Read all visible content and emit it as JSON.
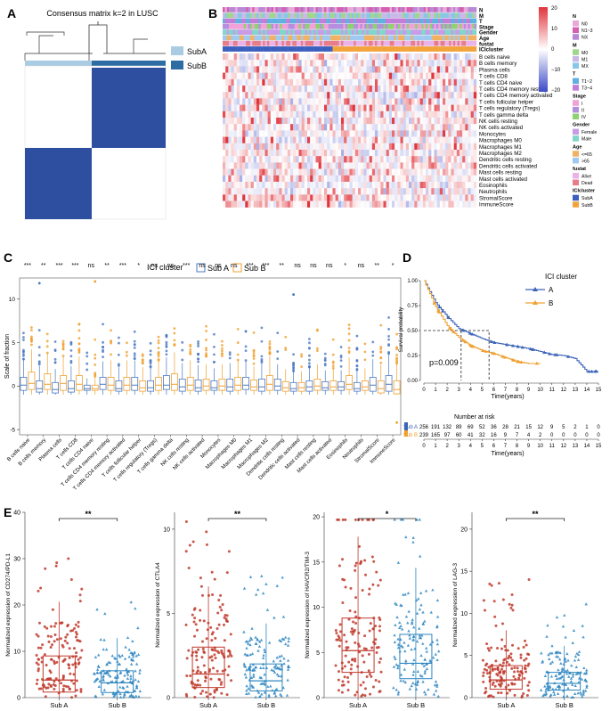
{
  "panel_labels": {
    "a": "A",
    "b": "B",
    "c": "C",
    "d": "D",
    "e": "E"
  },
  "panel_a": {
    "title": "Consensus matrix k=2 in LUSC",
    "legend": [
      "SubA",
      "SubB"
    ],
    "colors": {
      "suba": "#a9cce3",
      "subb": "#2e6da4",
      "cluster": "#2e4ea0"
    }
  },
  "panel_b": {
    "track_labels": [
      "N",
      "M",
      "T",
      "Stage",
      "Gender",
      "Age",
      "fustat",
      "ICIcluster"
    ],
    "row_labels": [
      "B cells naive",
      "B cells memory",
      "Plasma cells",
      "T cells CD8",
      "T cells CD4 naive",
      "T cells CD4 memory resting",
      "T cells CD4 memory activated",
      "T cells follicular helper",
      "T cells regulatory (Tregs)",
      "T cells gamma delta",
      "NK cells resting",
      "NK cells activated",
      "Monocytes",
      "Macrophages M0",
      "Macrophages M1",
      "Macrophages M2",
      "Dendritic cells resting",
      "Dendritic cells activated",
      "Mast cells resting",
      "Mast cells activated",
      "Eosinophils",
      "Neutrophils",
      "StromalScore",
      "ImmuneScore"
    ],
    "scale_ticks": [
      "20",
      "10",
      "0",
      "−10",
      "−20"
    ],
    "legend_groups": [
      {
        "title": "N",
        "items": [
          {
            "label": "N0",
            "color": "#e8a8d8"
          },
          {
            "label": "N1~3",
            "color": "#d55fb0"
          },
          {
            "label": "NX",
            "color": "#b887d6"
          }
        ]
      },
      {
        "title": "M",
        "items": [
          {
            "label": "M0",
            "color": "#9fd68a"
          },
          {
            "label": "M1",
            "color": "#c9b8e8"
          },
          {
            "label": "MX",
            "color": "#86c7e6"
          }
        ]
      },
      {
        "title": "T",
        "items": [
          {
            "label": "T1~2",
            "color": "#5fb0e0"
          },
          {
            "label": "T3~4",
            "color": "#c27dd8"
          }
        ]
      },
      {
        "title": "Stage",
        "items": [
          {
            "label": "I",
            "color": "#f2a0d8"
          },
          {
            "label": "II",
            "color": "#b48fe0"
          },
          {
            "label": "IV",
            "color": "#8ed170"
          }
        ]
      },
      {
        "title": "Gender",
        "items": [
          {
            "label": "Female",
            "color": "#c79be8"
          },
          {
            "label": "Male",
            "color": "#7fd6c9"
          }
        ]
      },
      {
        "title": "Age",
        "items": [
          {
            "label": "<=65",
            "color": "#f2b061"
          },
          {
            "label": ">65",
            "color": "#9fc9ef"
          }
        ]
      },
      {
        "title": "fustat",
        "items": [
          {
            "label": "Alive",
            "color": "#e9b3e8"
          },
          {
            "label": "Dead",
            "color": "#e77d88"
          }
        ]
      },
      {
        "title": "ICIcluster",
        "items": [
          {
            "label": "SubA",
            "color": "#3a5fbf"
          },
          {
            "label": "SubB",
            "color": "#f2a33a"
          }
        ]
      }
    ]
  },
  "panel_c": {
    "legend_title": "ICI cluster",
    "legend_items": [
      "Sub A",
      "Sub B"
    ],
    "ylabel": "Scale of fraction",
    "yticks": [
      "-5",
      "0",
      "5",
      "10"
    ],
    "colors": {
      "a": "#4a78c2",
      "b": "#f0a030"
    },
    "cells": [
      "B cells naive",
      "B cells memory",
      "Plasma cells",
      "T cells CD8",
      "T cells CD4 naive",
      "T cells CD4 memory resting",
      "T cells CD4 memory activated",
      "T cells follicular helper",
      "T cells regulatory (Tregs)",
      "T cells gamma delta",
      "NK cells resting",
      "NK cells activated",
      "Monocytes",
      "Macrophages M0",
      "Macrophages M1",
      "Macrophages M2",
      "Dendritic cells resting",
      "Dendritic cells activated",
      "Mast cells resting",
      "Mast cells activated",
      "Eosinophils",
      "Neutrophils",
      "StromalScore",
      "ImmuneScore"
    ],
    "sig": [
      "***",
      "**",
      "***",
      "***",
      "ns",
      "**",
      "***",
      "*",
      "ns",
      "ns",
      "***",
      "ns",
      "ns",
      "ns",
      "***",
      "***",
      "**",
      "ns",
      "ns",
      "ns",
      "*",
      "ns",
      "**",
      "*"
    ]
  },
  "panel_d": {
    "legend_title": "ICI cluster",
    "legend_items": [
      "A",
      "B"
    ],
    "ylabel": "Survival probability",
    "xlabel": "Time(years)",
    "pvalue": "p=0.009",
    "yticks": [
      "0.00",
      "0.25",
      "0.50",
      "0.75",
      "1.00"
    ],
    "xticks": [
      "0",
      "1",
      "2",
      "3",
      "4",
      "5",
      "6",
      "7",
      "8",
      "9",
      "10",
      "11",
      "12",
      "13",
      "14",
      "15"
    ],
    "risk_title": "Number at risk",
    "risk_rows": [
      {
        "label": "Sub A",
        "values": [
          "256",
          "191",
          "132",
          "89",
          "69",
          "52",
          "36",
          "28",
          "21",
          "15",
          "12",
          "9",
          "5",
          "2",
          "1",
          "0"
        ]
      },
      {
        "label": "Sub B",
        "values": [
          "239",
          "165",
          "97",
          "60",
          "41",
          "32",
          "16",
          "9",
          "7",
          "4",
          "2",
          "0",
          "0",
          "0",
          "0",
          "0"
        ]
      }
    ],
    "colors": {
      "a": "#3b64b8",
      "b": "#f0a030"
    }
  },
  "panel_e": {
    "groups": [
      "Sub A",
      "Sub B"
    ],
    "colors": {
      "a": "#c0392b",
      "b": "#2e86c1"
    },
    "plots": [
      {
        "ylabel": "Normalized expression of CD274/PD-L1",
        "sig": "**",
        "yticks": [
          "0",
          "10",
          "20",
          "30",
          "40"
        ]
      },
      {
        "ylabel": "Normalized expression of CTLA4",
        "sig": "**",
        "yticks": [
          "0",
          "5",
          "10"
        ]
      },
      {
        "ylabel": "Normalized expression of HAVCR2/TIM-3",
        "sig": "*",
        "yticks": [
          "0",
          "5",
          "10",
          "15",
          "20"
        ]
      },
      {
        "ylabel": "Normalized expression of LAG-3",
        "sig": "**",
        "yticks": [
          "0",
          "5",
          "10",
          "15",
          "20"
        ]
      }
    ]
  },
  "chart_data": [
    {
      "type": "heatmap",
      "title": "Consensus matrix k=2 in LUSC",
      "categories": [
        "SubA",
        "SubB"
      ],
      "note": "two-block consensus matrix"
    },
    {
      "type": "heatmap",
      "title": "",
      "rows": 24,
      "scale_range": [
        -20,
        20
      ]
    },
    {
      "type": "box",
      "title": "",
      "ylabel": "Scale of fraction",
      "ylim": [
        -5,
        12
      ],
      "categories": [
        "B cells naive",
        "B cells memory",
        "Plasma cells",
        "T cells CD8",
        "T cells CD4 naive",
        "T cells CD4 memory resting",
        "T cells CD4 memory activated",
        "T cells follicular helper",
        "T cells regulatory (Tregs)",
        "T cells gamma delta",
        "NK cells resting",
        "NK cells activated",
        "Monocytes",
        "Macrophages M0",
        "Macrophages M1",
        "Macrophages M2",
        "Dendritic cells resting",
        "Dendritic cells activated",
        "Mast cells resting",
        "Mast cells activated",
        "Eosinophils",
        "Neutrophils",
        "StromalScore",
        "ImmuneScore"
      ],
      "series": [
        {
          "name": "Sub A",
          "median": [
            0.1,
            -0.3,
            -0.4,
            -0.3,
            -0.3,
            0.2,
            -0.3,
            0.1,
            -0.2,
            0.1,
            -0.1,
            -0.2,
            -0.2,
            -0.1,
            0.1,
            -0.1,
            0.0,
            -0.3,
            -0.1,
            -0.2,
            -0.1,
            -0.3,
            0.1,
            0.2
          ],
          "q1": [
            -0.5,
            -0.7,
            -0.8,
            -0.7,
            -0.5,
            -0.4,
            -0.6,
            -0.5,
            -0.6,
            -0.4,
            -0.6,
            -0.6,
            -0.5,
            -0.6,
            -0.4,
            -0.6,
            -0.5,
            -0.6,
            -0.6,
            -0.5,
            -0.5,
            -0.6,
            -0.6,
            -0.6
          ],
          "q3": [
            1.0,
            0.6,
            0.4,
            0.6,
            0.1,
            1.0,
            0.6,
            1.0,
            0.6,
            1.2,
            0.8,
            0.7,
            0.6,
            0.8,
            1.0,
            0.8,
            0.8,
            0.4,
            0.6,
            0.5,
            0.5,
            0.4,
            1.0,
            1.2
          ]
        },
        {
          "name": "Sub B",
          "median": [
            0.3,
            0.2,
            0.3,
            0.2,
            -0.3,
            0.1,
            0.1,
            -0.2,
            0.1,
            0.2,
            0.1,
            0.0,
            0.0,
            0.1,
            -0.1,
            0.2,
            -0.2,
            -0.2,
            0.0,
            -0.1,
            0.2,
            -0.1,
            -0.3,
            -0.4
          ],
          "q1": [
            -0.4,
            -0.4,
            -0.5,
            -0.5,
            -0.5,
            -0.5,
            -0.5,
            -0.6,
            -0.5,
            -0.5,
            -0.5,
            -0.5,
            -0.5,
            -0.5,
            -0.5,
            -0.5,
            -0.6,
            -0.6,
            -0.5,
            -0.5,
            -0.4,
            -0.5,
            -0.8,
            -0.9
          ],
          "q3": [
            1.6,
            1.4,
            1.2,
            1.2,
            0.1,
            1.0,
            1.0,
            0.6,
            1.0,
            1.4,
            1.0,
            0.8,
            0.8,
            1.0,
            0.7,
            1.2,
            0.5,
            0.4,
            0.8,
            0.6,
            1.2,
            0.6,
            0.6,
            0.6
          ]
        }
      ]
    },
    {
      "type": "line",
      "title": "",
      "xlabel": "Time(years)",
      "ylabel": "Survival probability",
      "xlim": [
        0,
        15
      ],
      "ylim": [
        0,
        1
      ],
      "series": [
        {
          "name": "A",
          "x": [
            0,
            1,
            2,
            3,
            4,
            5,
            6,
            7,
            8,
            9,
            10,
            11,
            12,
            13,
            14,
            15
          ],
          "y": [
            1.0,
            0.78,
            0.64,
            0.52,
            0.47,
            0.42,
            0.38,
            0.36,
            0.34,
            0.32,
            0.29,
            0.26,
            0.25,
            0.22,
            0.09,
            0.09
          ]
        },
        {
          "name": "B",
          "x": [
            0,
            1,
            2,
            3,
            4,
            5,
            6,
            7,
            8,
            9,
            10
          ],
          "y": [
            1.0,
            0.74,
            0.55,
            0.43,
            0.35,
            0.3,
            0.27,
            0.23,
            0.19,
            0.17,
            0.17
          ]
        }
      ]
    },
    {
      "type": "box",
      "title": "CD274/PD-L1",
      "categories": [
        "Sub A",
        "Sub B"
      ],
      "median": [
        3.8,
        3.2
      ],
      "q1": [
        1.2,
        1.1
      ],
      "q3": [
        9.0,
        5.8
      ],
      "ylim": [
        0,
        40
      ]
    },
    {
      "type": "box",
      "title": "CTLA4",
      "categories": [
        "Sub A",
        "Sub B"
      ],
      "median": [
        1.4,
        1.0
      ],
      "q1": [
        0.6,
        0.4
      ],
      "q3": [
        3.0,
        2.0
      ],
      "ylim": [
        0,
        11
      ]
    },
    {
      "type": "box",
      "title": "HAVCR2/TIM-3",
      "categories": [
        "Sub A",
        "Sub B"
      ],
      "median": [
        5.2,
        3.8
      ],
      "q1": [
        2.8,
        2.1
      ],
      "q3": [
        8.8,
        7.0
      ],
      "ylim": [
        0,
        20.5
      ]
    },
    {
      "type": "box",
      "title": "LAG-3",
      "categories": [
        "Sub A",
        "Sub B"
      ],
      "median": [
        2.1,
        1.7
      ],
      "q1": [
        1.0,
        0.9
      ],
      "q3": [
        3.8,
        3.0
      ],
      "ylim": [
        0,
        22
      ]
    }
  ]
}
